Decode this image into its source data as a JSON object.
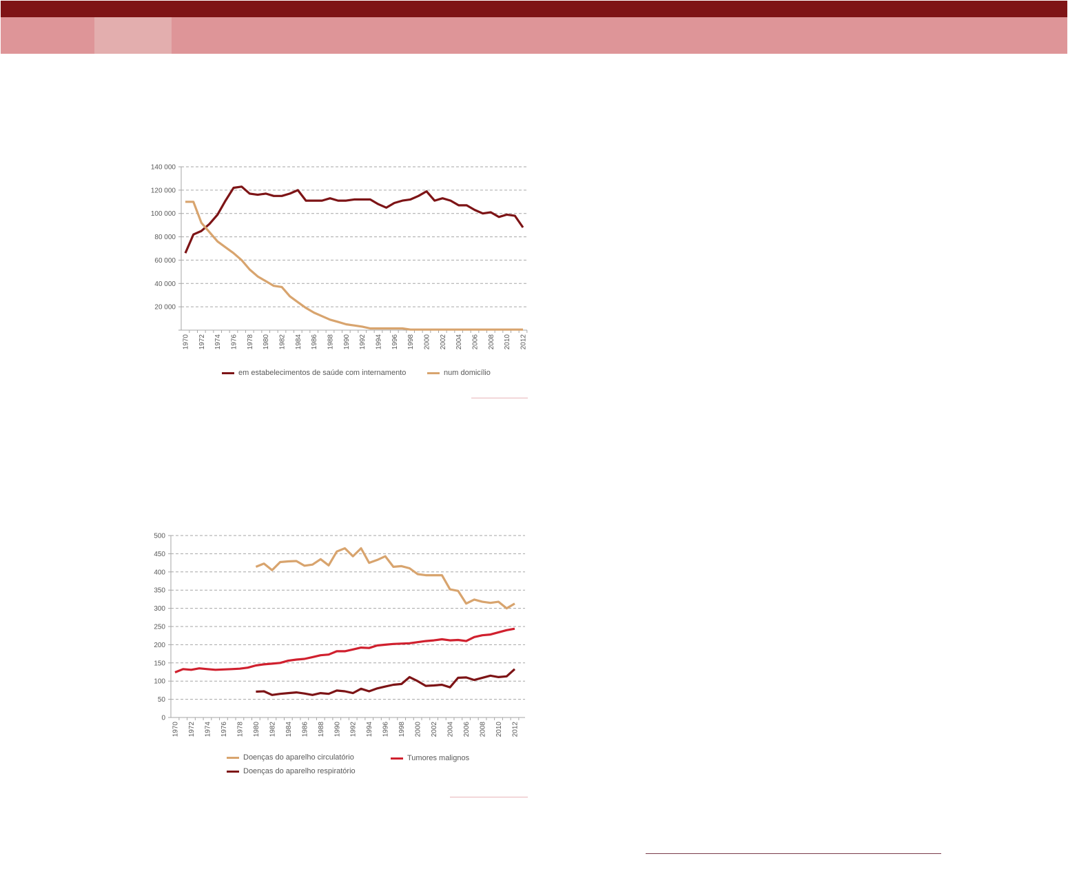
{
  "colors": {
    "header_dark": "#7f1416",
    "header_band": "#de9598",
    "header_tab": "#e3aeae",
    "accent_rule": "#e8b4b8",
    "bottom_rule": "#7a3a4a"
  },
  "chart_data": [
    {
      "type": "line",
      "title": "",
      "xlabel": "",
      "ylabel": "",
      "x": [
        1970,
        1971,
        1972,
        1973,
        1974,
        1975,
        1976,
        1977,
        1978,
        1979,
        1980,
        1981,
        1982,
        1983,
        1984,
        1985,
        1986,
        1987,
        1988,
        1989,
        1990,
        1991,
        1992,
        1993,
        1994,
        1995,
        1996,
        1997,
        1998,
        1999,
        2000,
        2001,
        2002,
        2003,
        2004,
        2005,
        2006,
        2007,
        2008,
        2009,
        2010,
        2011,
        2012
      ],
      "xticks": [
        "1970",
        "1972",
        "1974",
        "1976",
        "1978",
        "1980",
        "1982",
        "1984",
        "1986",
        "1988",
        "1990",
        "1992",
        "1994",
        "1996",
        "1998",
        "2000",
        "2002",
        "2004",
        "2006",
        "2008",
        "2010",
        "2012"
      ],
      "ylim": [
        0,
        140000
      ],
      "yticks": [
        20000,
        40000,
        60000,
        80000,
        100000,
        120000,
        140000
      ],
      "ytick_labels": [
        "20 000",
        "40 000",
        "60 000",
        "80 000",
        "100 000",
        "120 000",
        "140 000"
      ],
      "grid": true,
      "legend_placement": "bottom",
      "series": [
        {
          "name": "em estabelecimentos de saúde com internamento",
          "color": "#7d1416",
          "values": [
            66000,
            82000,
            85000,
            91000,
            99000,
            111000,
            122000,
            123000,
            117000,
            116000,
            117000,
            115000,
            115000,
            117000,
            120000,
            111000,
            111000,
            111000,
            113000,
            111000,
            111000,
            112000,
            112000,
            112000,
            108000,
            105000,
            109000,
            111000,
            112000,
            115000,
            119000,
            111000,
            113000,
            111000,
            107000,
            107000,
            103000,
            100000,
            101000,
            97000,
            99000,
            98000,
            88000
          ]
        },
        {
          "name": "num domicílio",
          "color": "#d8a46e",
          "values": [
            110000,
            110000,
            92000,
            84000,
            76000,
            71000,
            66000,
            60000,
            52000,
            46000,
            42000,
            38000,
            37000,
            29000,
            24000,
            19000,
            15000,
            12000,
            9000,
            7000,
            5000,
            4000,
            3000,
            1500,
            1500,
            1500,
            1500,
            1500,
            500,
            500,
            500,
            500,
            500,
            500,
            500,
            500,
            500,
            500,
            500,
            500,
            500,
            500,
            500
          ]
        }
      ]
    },
    {
      "type": "line",
      "title": "",
      "xlabel": "",
      "ylabel": "",
      "x": [
        1970,
        1971,
        1972,
        1973,
        1974,
        1975,
        1976,
        1977,
        1978,
        1979,
        1980,
        1981,
        1982,
        1983,
        1984,
        1985,
        1986,
        1987,
        1988,
        1989,
        1990,
        1991,
        1992,
        1993,
        1994,
        1995,
        1996,
        1997,
        1998,
        1999,
        2000,
        2001,
        2002,
        2003,
        2004,
        2005,
        2006,
        2007,
        2008,
        2009,
        2010,
        2011,
        2012
      ],
      "xticks": [
        "1970",
        "1972",
        "1974",
        "1976",
        "1978",
        "1980",
        "1982",
        "1984",
        "1986",
        "1988",
        "1990",
        "1992",
        "1994",
        "1996",
        "1998",
        "2000",
        "2002",
        "2004",
        "2006",
        "2008",
        "2010",
        "2012"
      ],
      "ylim": [
        0,
        500
      ],
      "yticks": [
        0,
        50,
        100,
        150,
        200,
        250,
        300,
        350,
        400,
        450,
        500
      ],
      "ytick_labels": [
        "0",
        "50",
        "100",
        "150",
        "200",
        "250",
        "300",
        "350",
        "400",
        "450",
        "500"
      ],
      "grid": true,
      "legend_placement": "bottom",
      "series": [
        {
          "name": "Doenças do aparelho circulatório",
          "color": "#d8a46e",
          "values": [
            null,
            null,
            null,
            null,
            null,
            null,
            null,
            null,
            null,
            null,
            414,
            423,
            405,
            427,
            429,
            430,
            417,
            420,
            435,
            418,
            456,
            465,
            443,
            465,
            425,
            433,
            443,
            414,
            416,
            410,
            394,
            391,
            391,
            391,
            352,
            348,
            313,
            324,
            318,
            315,
            318,
            300,
            313
          ]
        },
        {
          "name": "Tumores malignos",
          "color": "#d0202e",
          "values": [
            124,
            133,
            131,
            135,
            133,
            131,
            132,
            133,
            134,
            137,
            143,
            146,
            148,
            150,
            156,
            159,
            161,
            166,
            171,
            173,
            182,
            182,
            187,
            192,
            191,
            198,
            200,
            202,
            203,
            204,
            207,
            210,
            212,
            215,
            212,
            213,
            210,
            221,
            226,
            228,
            234,
            240,
            244
          ]
        },
        {
          "name": "Doenças do aparelho respiratório",
          "color": "#7d1416",
          "values": [
            null,
            null,
            null,
            null,
            null,
            null,
            null,
            null,
            null,
            null,
            71,
            72,
            62,
            65,
            67,
            69,
            66,
            62,
            67,
            65,
            74,
            72,
            67,
            79,
            72,
            80,
            85,
            90,
            92,
            111,
            100,
            87,
            88,
            90,
            83,
            109,
            110,
            103,
            109,
            115,
            111,
            113,
            133
          ]
        }
      ]
    }
  ]
}
